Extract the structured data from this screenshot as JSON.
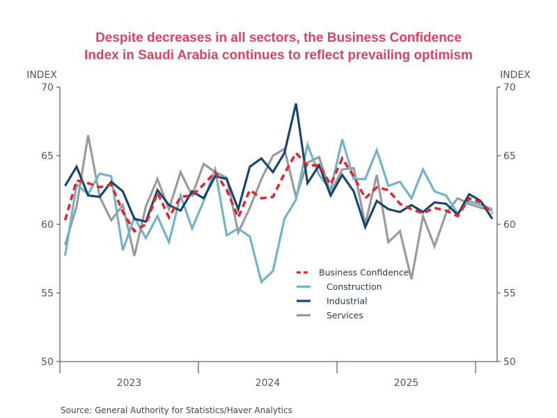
{
  "chart_data": {
    "type": "line",
    "title_lines": [
      "Despite decreases in all sectors, the Business Confidence",
      "Index in Saudi Arabia continues to reflect prevailing optimism"
    ],
    "ylabel_left": "INDEX",
    "ylabel_right": "INDEX",
    "ylim": [
      50,
      70
    ],
    "yticks": [
      50,
      55,
      60,
      65,
      70
    ],
    "xlabel": "",
    "x_tick_labels": [
      "2023",
      "2024",
      "2025"
    ],
    "x_start": "2023-01",
    "x_frequency": "monthly",
    "grid": false,
    "legend_position": "center-right",
    "series": [
      {
        "name": "Business Confidence",
        "color": "#e0262e",
        "style": "dashed",
        "values": [
          60.3,
          63.2,
          63.0,
          62.7,
          62.9,
          60.9,
          59.5,
          60.0,
          62.3,
          60.5,
          62.0,
          62.1,
          62.9,
          63.8,
          62.5,
          60.5,
          62.5,
          61.9,
          62.0,
          63.7,
          65.2,
          64.3,
          64.3,
          62.9,
          64.8,
          63.5,
          61.9,
          62.7,
          62.5,
          61.5,
          61.1,
          60.8,
          61.2,
          61.0,
          60.6,
          61.9,
          61.6,
          60.8
        ]
      },
      {
        "name": "Construction",
        "color": "#74b3c6",
        "style": "solid",
        "values": [
          57.7,
          62.9,
          62.2,
          63.7,
          63.5,
          58.1,
          60.5,
          59.0,
          60.6,
          58.7,
          62.1,
          59.7,
          61.7,
          64.0,
          59.2,
          59.7,
          59.1,
          55.8,
          56.6,
          60.4,
          61.8,
          65.8,
          63.6,
          62.5,
          66.2,
          63.3,
          63.3,
          65.4,
          62.8,
          63.1,
          61.9,
          64.0,
          62.4,
          62.1,
          60.8,
          61.7,
          61.4,
          61.1
        ]
      },
      {
        "name": "Industrial",
        "color": "#17456f",
        "style": "solid",
        "values": [
          62.8,
          64.2,
          62.1,
          62.0,
          63.1,
          62.4,
          60.4,
          60.2,
          62.5,
          61.4,
          61.0,
          62.4,
          61.9,
          63.5,
          63.3,
          61.1,
          64.2,
          64.8,
          63.8,
          65.2,
          68.8,
          63.0,
          64.3,
          62.1,
          63.6,
          62.4,
          59.8,
          61.7,
          61.1,
          60.9,
          61.4,
          60.9,
          61.6,
          61.5,
          60.7,
          62.2,
          61.7,
          60.4
        ]
      },
      {
        "name": "Services",
        "color": "#999a9e",
        "style": "solid",
        "values": [
          58.5,
          61.3,
          66.5,
          62.0,
          60.3,
          61.4,
          57.7,
          61.3,
          63.3,
          61.1,
          63.8,
          62.1,
          64.4,
          63.8,
          63.4,
          59.4,
          61.2,
          63.3,
          65.0,
          65.5,
          62.0,
          64.5,
          64.9,
          62.3,
          64.0,
          64.1,
          60.0,
          63.6,
          58.7,
          59.5,
          56.0,
          60.6,
          58.4,
          60.8,
          61.9,
          61.5,
          61.2,
          61.0
        ]
      }
    ]
  },
  "source": "Source:  General Authority for Statistics/Haver Analytics"
}
